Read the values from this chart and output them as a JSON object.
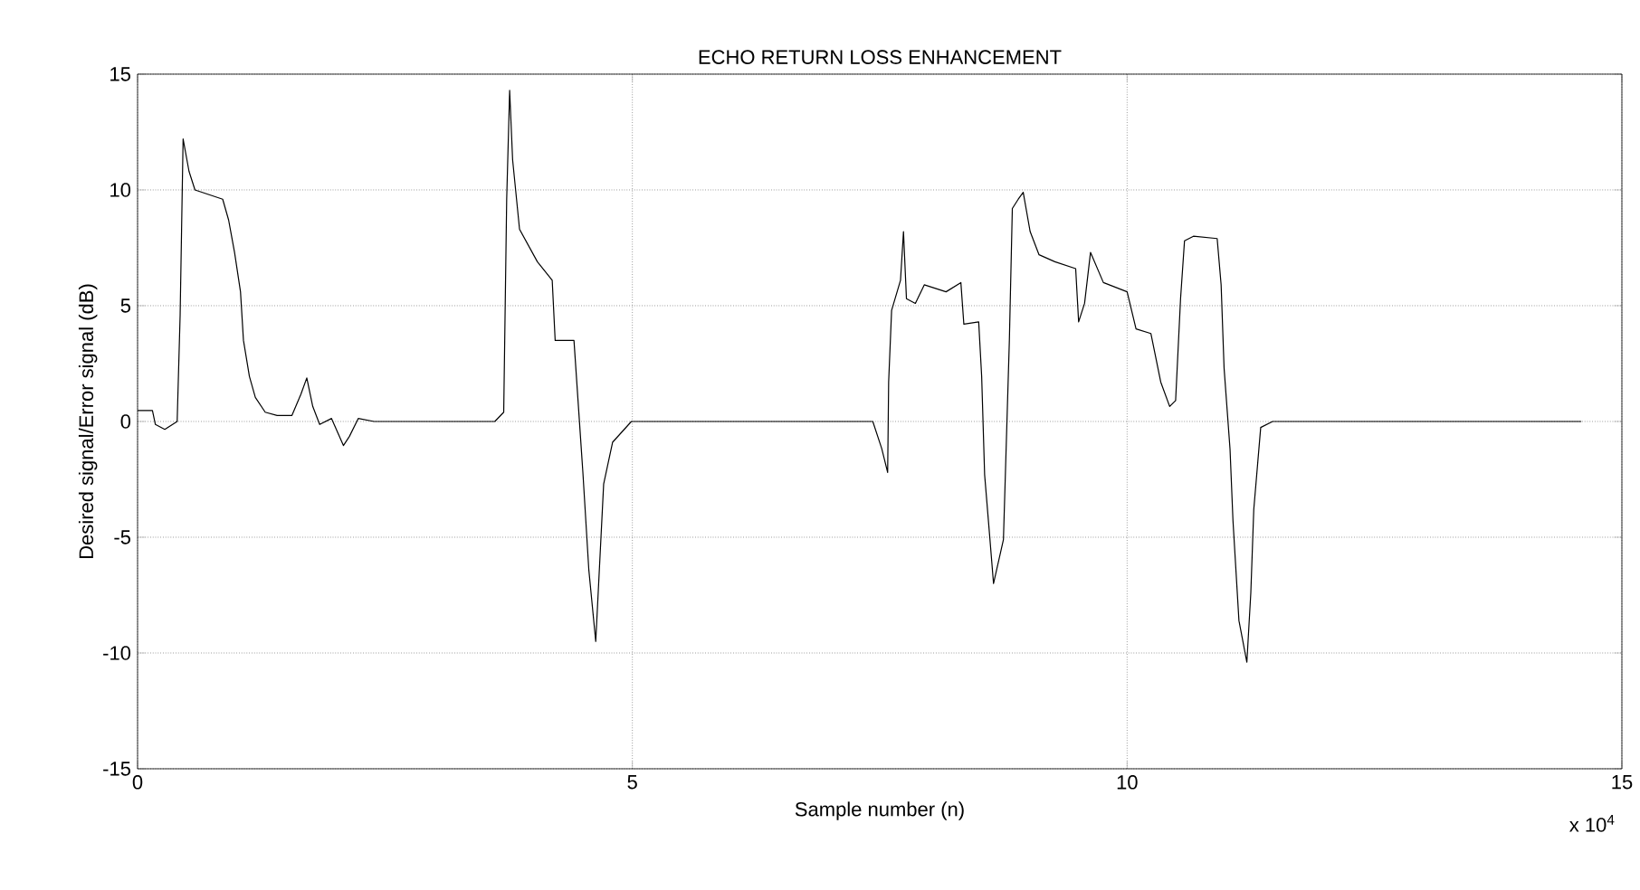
{
  "chart_data": {
    "type": "line",
    "title": "ECHO RETURN LOSS ENHANCEMENT",
    "xlabel": "Sample number (n)",
    "ylabel": "Desired signal/Error signal (dB)",
    "annotations": [
      "x 10$^{4}$"
    ],
    "xlim": [
      0,
      15
    ],
    "ylim": [
      -15,
      15
    ],
    "xticks": [
      0,
      5,
      10,
      15
    ],
    "yticks": [
      -15,
      -10,
      -5,
      0,
      5,
      10,
      15
    ],
    "grid": true,
    "marker": "none",
    "line_style": "solid",
    "series": [
      {
        "color": "#000000",
        "x": [
          0,
          0.15,
          0.18,
          0.275,
          0.4,
          0.43,
          0.46,
          0.52,
          0.58,
          0.86,
          0.92,
          0.98,
          1.04,
          1.07,
          1.13,
          1.19,
          1.29,
          1.41,
          1.56,
          1.65,
          1.71,
          1.77,
          1.84,
          1.96,
          2.08,
          2.14,
          2.23,
          2.39,
          3.61,
          3.7,
          3.73,
          3.76,
          3.79,
          3.86,
          4.04,
          4.19,
          4.22,
          4.41,
          4.5,
          4.56,
          4.63,
          4.71,
          4.8,
          4.99,
          5.05,
          7.43,
          7.52,
          7.58,
          7.59,
          7.62,
          7.71,
          7.74,
          7.77,
          7.86,
          7.95,
          8.17,
          8.32,
          8.35,
          8.5,
          8.53,
          8.56,
          8.61,
          8.65,
          8.75,
          8.81,
          8.84,
          8.9,
          8.95,
          9.02,
          9.11,
          9.27,
          9.48,
          9.51,
          9.57,
          9.63,
          9.76,
          10.0,
          10.09,
          10.24,
          10.34,
          10.43,
          10.49,
          10.54,
          10.58,
          10.67,
          10.91,
          10.95,
          10.98,
          11.04,
          11.07,
          11.13,
          11.21,
          11.25,
          11.28,
          11.35,
          11.47,
          14.59
        ],
        "values": [
          0.47,
          0.47,
          -0.13,
          -0.34,
          0,
          4.6,
          12.2,
          10.8,
          10.0,
          9.6,
          8.7,
          7.3,
          5.6,
          3.5,
          1.95,
          1.04,
          0.4,
          0.26,
          0.26,
          1.17,
          1.88,
          0.65,
          -0.13,
          0.13,
          -1.04,
          -0.65,
          0.13,
          0,
          0,
          0.4,
          9.6,
          14.3,
          11.3,
          8.3,
          6.9,
          6.1,
          3.5,
          3.5,
          -2.2,
          -6.4,
          -9.5,
          -2.7,
          -0.9,
          0,
          0,
          0,
          -1.17,
          -2.2,
          1.7,
          4.8,
          6.1,
          8.2,
          5.3,
          5.1,
          5.9,
          5.6,
          6.0,
          4.2,
          4.3,
          1.95,
          -2.3,
          -4.9,
          -7.0,
          -5.1,
          3.5,
          9.2,
          9.6,
          9.9,
          8.2,
          7.2,
          6.9,
          6.6,
          4.3,
          5.1,
          7.3,
          6.0,
          5.6,
          4.0,
          3.8,
          1.7,
          0.65,
          0.9,
          5.3,
          7.8,
          8.0,
          7.9,
          5.9,
          2.3,
          -1.2,
          -4.3,
          -8.6,
          -10.4,
          -7.4,
          -3.8,
          -0.26,
          0,
          0
        ]
      }
    ]
  }
}
